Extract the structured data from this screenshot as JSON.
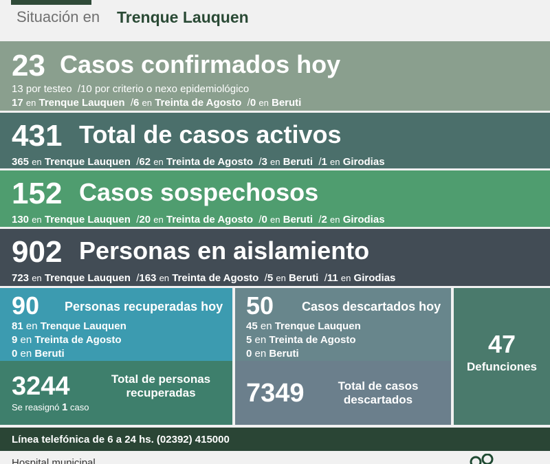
{
  "header": {
    "label": "Situación en",
    "town": "Trenque Lauquen"
  },
  "confirmed_today": {
    "number": "23",
    "title": "Casos confirmados hoy",
    "line1": {
      "a_num": "13",
      "a_text": "por testeo",
      "b_num": "10",
      "b_text": "por criterio o nexo epidemiológico"
    },
    "line2": [
      {
        "num": "17",
        "en": "en",
        "place": "Trenque Lauquen"
      },
      {
        "num": "6",
        "en": "en",
        "place": "Treinta de Agosto"
      },
      {
        "num": "0",
        "en": "en",
        "place": "Beruti"
      }
    ]
  },
  "active_total": {
    "number": "431",
    "title": "Total de casos activos",
    "items": [
      {
        "num": "365",
        "en": "en",
        "place": "Trenque Lauquen"
      },
      {
        "num": "62",
        "en": "en",
        "place": "Treinta de Agosto"
      },
      {
        "num": "3",
        "en": "en",
        "place": "Beruti"
      },
      {
        "num": "1",
        "en": "en",
        "place": "Girodias"
      }
    ]
  },
  "suspected": {
    "number": "152",
    "title": "Casos sospechosos",
    "items": [
      {
        "num": "130",
        "en": "en",
        "place": "Trenque Lauquen"
      },
      {
        "num": "20",
        "en": "en",
        "place": "Treinta de Agosto"
      },
      {
        "num": "0",
        "en": "en",
        "place": "Beruti"
      },
      {
        "num": "2",
        "en": "en",
        "place": "Girodias"
      }
    ]
  },
  "isolation": {
    "number": "902",
    "title": "Personas en aislamiento",
    "items": [
      {
        "num": "723",
        "en": "en",
        "place": "Trenque Lauquen"
      },
      {
        "num": "163",
        "en": "en",
        "place": "Treinta de Agosto"
      },
      {
        "num": "5",
        "en": "en",
        "place": "Beruti"
      },
      {
        "num": "11",
        "en": "en",
        "place": "Girodias"
      }
    ]
  },
  "recovered_today": {
    "number": "90",
    "title": "Personas recuperadas hoy",
    "items": [
      {
        "num": "81",
        "en": "en",
        "place": "Trenque Lauquen"
      },
      {
        "num": "9",
        "en": "en",
        "place": "Treinta de Agosto"
      },
      {
        "num": "0",
        "en": "en",
        "place": "Beruti"
      }
    ]
  },
  "recovered_total": {
    "number": "3244",
    "title_line1": "Total de personas",
    "title_line2": "recuperadas",
    "note_pre": "Se reasignó",
    "note_num": "1",
    "note_post": "caso"
  },
  "discarded_today": {
    "number": "50",
    "title": "Casos descartados hoy",
    "items": [
      {
        "num": "45",
        "en": "en",
        "place": "Trenque Lauquen"
      },
      {
        "num": "5",
        "en": "en",
        "place": "Treinta de Agosto"
      },
      {
        "num": "0",
        "en": "en",
        "place": "Beruti"
      }
    ]
  },
  "discarded_total": {
    "number": "7349",
    "title_line1": "Total de casos",
    "title_line2": "descartados"
  },
  "deaths": {
    "number": "47",
    "label": "Defunciones"
  },
  "phone": "Línea telefónica de 6 a 24 hs. (02392) 415000",
  "footer": {
    "hospital": "Hospital municipal"
  },
  "colors": {
    "confirmed": "#8a9f8e",
    "active": "#4b6f6b",
    "suspected": "#4f9d6f",
    "isolation": "#424c55",
    "recovered_today": "#3c9bb0",
    "recovered_total": "#3e7f6c",
    "discarded_today": "#68868c",
    "discarded_total": "#6b7f8c",
    "deaths": "#4a7a6c",
    "phone_bar": "#2a4535"
  }
}
